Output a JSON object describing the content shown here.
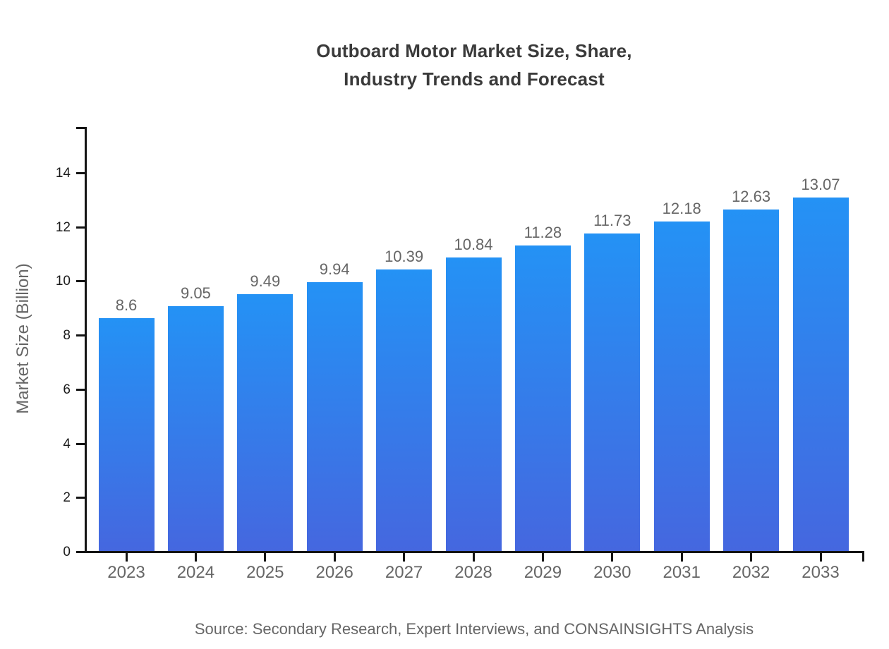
{
  "chart_data": {
    "type": "bar",
    "title_lines": [
      "Outboard Motor Market Size, Share,",
      "Industry Trends and Forecast"
    ],
    "categories": [
      "2023",
      "2024",
      "2025",
      "2026",
      "2027",
      "2028",
      "2029",
      "2030",
      "2031",
      "2032",
      "2033"
    ],
    "values": [
      8.6,
      9.05,
      9.49,
      9.94,
      10.39,
      10.84,
      11.28,
      11.73,
      12.18,
      12.63,
      13.07
    ],
    "xlabel": "",
    "ylabel": "Market Size (Billion)",
    "yticks": [
      0,
      2,
      4,
      6,
      8,
      10,
      12,
      14
    ],
    "ylim": [
      0,
      15.67
    ],
    "grid": false,
    "legend": "none",
    "colors": {
      "bar_gradient_top": "#2492f5",
      "bar_gradient_bottom": "#4567df",
      "axis": "#141414",
      "title": "#3a3a3a",
      "muted_label": "#666666",
      "y_tick_label": "#1a1a1a"
    },
    "source": "Source: Secondary Research, Expert Interviews, and CONSAINSIGHTS Analysis"
  }
}
